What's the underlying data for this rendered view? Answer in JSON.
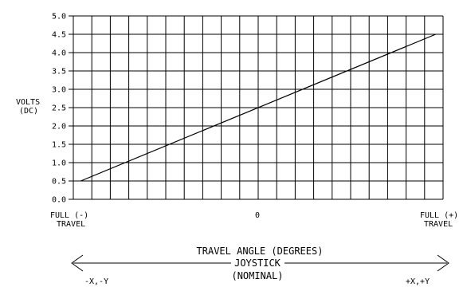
{
  "chart_data": {
    "type": "line",
    "title": "",
    "ylabel_lines": [
      "VOLTS",
      "(DC)"
    ],
    "ytick_labels": [
      "0.0",
      "0.5",
      "1.0",
      "1.5",
      "2.0",
      "2.5",
      "3.0",
      "3.5",
      "4.0",
      "4.5",
      "5.0"
    ],
    "ylim": [
      0,
      5
    ],
    "xlim": [
      -10,
      10
    ],
    "x_grid_count": 20,
    "grid": true,
    "xtick_labels": {
      "left": [
        "FULL (-)",
        "TRAVEL"
      ],
      "center": "0",
      "right": [
        "FULL (+)",
        "TRAVEL"
      ]
    },
    "series": [
      {
        "x": [
          -9.6,
          9.6
        ],
        "y": [
          0.5,
          4.5
        ]
      }
    ],
    "xlabel_lines": [
      "TRAVEL ANGLE (DEGREES)",
      "JOYSTICK",
      "(NOMINAL)"
    ],
    "direction_left": "-X,-Y",
    "direction_right": "+X,+Y",
    "colors": {
      "line": "#000000",
      "grid": "#000000",
      "background": "#ffffff"
    }
  }
}
